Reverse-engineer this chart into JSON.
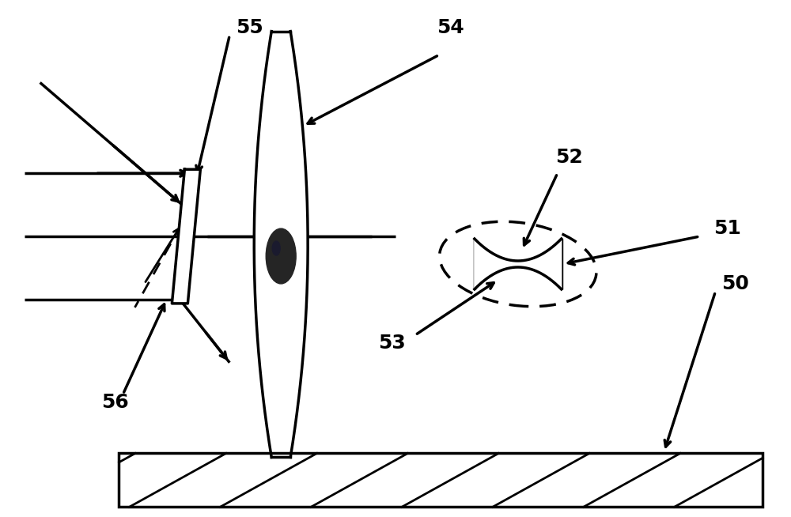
{
  "bg_color": "#ffffff",
  "line_color": "#000000",
  "label_color": "#000000",
  "label_fontsize": 18,
  "label_fontweight": "bold",
  "figsize": [
    10.0,
    6.54
  ],
  "dpi": 100,
  "lw": 2.0,
  "lw_thick": 2.5
}
